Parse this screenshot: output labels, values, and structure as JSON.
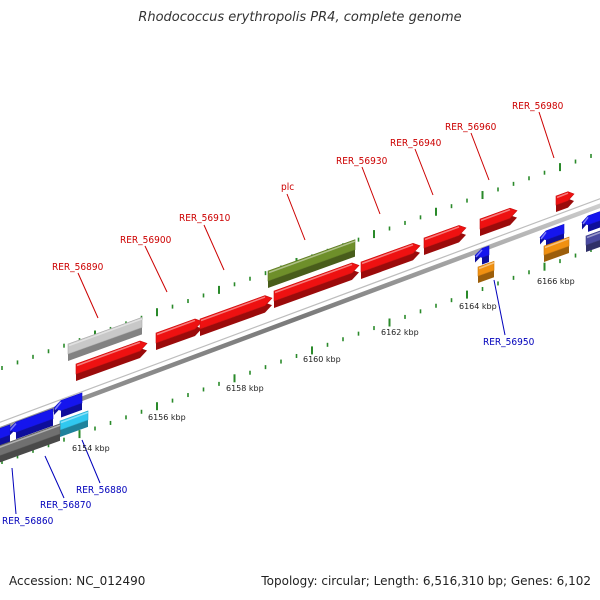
{
  "title": "Rhodococcus erythropolis PR4, complete genome",
  "footer": {
    "accession": "Accession: NC_012490",
    "summary": "Topology: circular; Length: 6,516,310 bp; Genes: 6,102"
  },
  "colors": {
    "red": "#ee1111",
    "gray": "#c8c8c8",
    "olive": "#6e8f2a",
    "blue": "#1515ee",
    "cyan": "#30c8f0",
    "orange": "#f09010",
    "darkgray": "#707070",
    "navy": "#4a4aa0",
    "tick": "#2a8a2a",
    "forward_label": "#cc0000",
    "reverse_label": "#0000bb"
  },
  "scale": {
    "ticks": [
      "6154 kbp",
      "6156 kbp",
      "6158 kbp",
      "6160 kbp",
      "6162 kbp",
      "6164 kbp",
      "6166 kbp"
    ]
  },
  "forward_labels": [
    "RER_56890",
    "RER_56900",
    "RER_56910",
    "plc",
    "RER_56930",
    "RER_56940",
    "RER_56960",
    "RER_56980"
  ],
  "reverse_labels": [
    "RER_56860",
    "RER_56870",
    "RER_56880",
    "RER_56950"
  ]
}
